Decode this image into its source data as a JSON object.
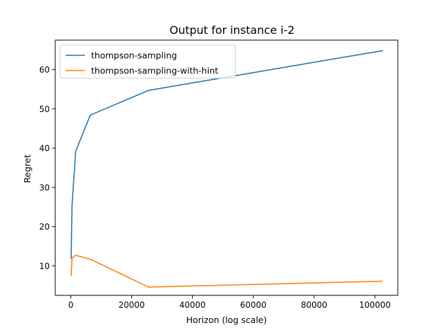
{
  "chart_data": {
    "type": "line",
    "title": "Output for instance i-2",
    "xlabel": "Horizon (log scale)",
    "ylabel": "Regret",
    "xlim": [
      -5120,
      107520
    ],
    "ylim": [
      2.5,
      67.5
    ],
    "xticks": [
      0,
      20000,
      40000,
      60000,
      80000,
      100000
    ],
    "yticks": [
      10,
      20,
      30,
      40,
      50,
      60
    ],
    "grid": false,
    "legend_position": "upper left",
    "x": [
      100,
      400,
      1600,
      6400,
      25600,
      102400
    ],
    "series": [
      {
        "name": "thompson-sampling",
        "color": "#1f77b4",
        "values": [
          12.0,
          25.5,
          39.2,
          48.4,
          54.7,
          64.8
        ]
      },
      {
        "name": "thompson-sampling-with-hint",
        "color": "#ff7f0e",
        "values": [
          7.6,
          12.0,
          12.7,
          11.7,
          4.6,
          6.1
        ]
      }
    ]
  }
}
